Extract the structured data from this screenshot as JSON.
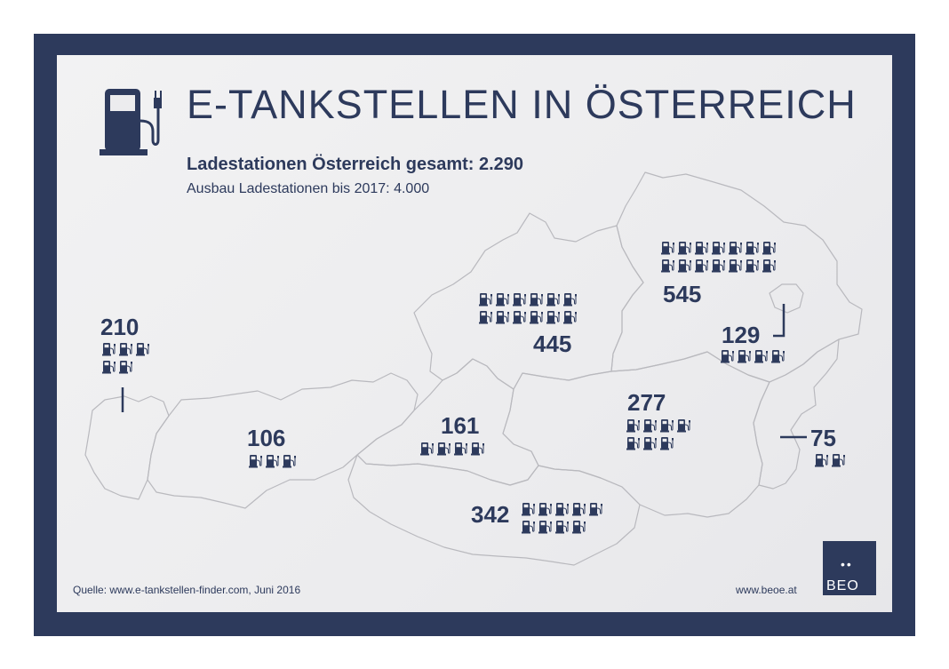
{
  "header": {
    "title": "E-TANKSTELLEN IN ÖSTERREICH",
    "total_line": "Ladestationen Österreich gesamt: 2.290",
    "target_line": "Ausbau Ladestationen bis 2017: 4.000",
    "icon": "ev-charging-station-icon"
  },
  "regions": [
    {
      "name": "vorarlberg",
      "count": "210",
      "icons": 5
    },
    {
      "name": "tirol",
      "count": "106",
      "icons": 3
    },
    {
      "name": "salzburg",
      "count": "161",
      "icons": 4
    },
    {
      "name": "oberoesterreich",
      "count": "445",
      "icons": 12
    },
    {
      "name": "niederoesterreich",
      "count": "545",
      "icons": 14
    },
    {
      "name": "wien",
      "count": "129",
      "icons": 4
    },
    {
      "name": "steiermark",
      "count": "277",
      "icons": 7
    },
    {
      "name": "burgenland",
      "count": "75",
      "icons": 2
    },
    {
      "name": "kaernten",
      "count": "342",
      "icons": 9
    }
  ],
  "footer": {
    "source": "Quelle: www.e-tankstellen-finder.com, Juni 2016",
    "website": "www.beoe.at",
    "logo_text": "BEO",
    "logo_dots": "••"
  },
  "colors": {
    "primary": "#2d3a5c",
    "border_line": "#b7b7bc",
    "background": "#eeeeef"
  }
}
